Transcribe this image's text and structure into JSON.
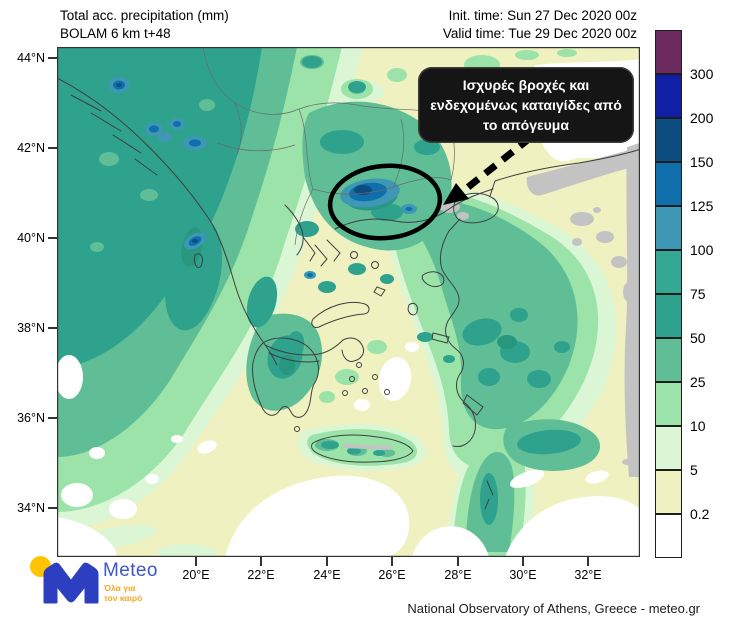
{
  "header": {
    "title_line1": "Total acc. precipitation (mm)",
    "title_line2": "BOLAM 6 km t+48",
    "init_time": "Init. time: Sun 27 Dec 2020 00z",
    "valid_time": "Valid time: Tue 29 Dec 2020 00z"
  },
  "annotation": {
    "line1": "Ισχυρές βροχές και",
    "line2": "ενδεχομένως καταιγίδες από",
    "line3": "το απόγευμα"
  },
  "axes": {
    "lat_labels": [
      "44°N",
      "42°N",
      "40°N",
      "38°N",
      "36°N",
      "34°N"
    ],
    "lon_labels": [
      "20°E",
      "22°E",
      "24°E",
      "26°E",
      "28°E",
      "30°E",
      "32°E"
    ]
  },
  "colorbar": {
    "labels": [
      "300",
      "200",
      "150",
      "125",
      "100",
      "75",
      "50",
      "25",
      "10",
      "5",
      "0.2"
    ],
    "colors": [
      "#6D2A60",
      "#101FA6",
      "#0D4D80",
      "#0E6FAC",
      "#3E97B4",
      "#35A893",
      "#2EA28D",
      "#5FBE96",
      "#9BE3A8",
      "#DBF6D4",
      "#EFF1C0",
      "#FFFFFF"
    ]
  },
  "branding": {
    "logo_name": "Meteo",
    "logo_tagline_line1": "Όλα για",
    "logo_tagline_line2": "τον καιρό",
    "logo_blue": "#2B3FC0",
    "logo_text_blue": "#3D56C9",
    "logo_yellow": "#FFC400",
    "logo_orange": "#F5A623"
  },
  "footer": {
    "credit": "National Observatory of Athens, Greece - meteo.gr"
  }
}
